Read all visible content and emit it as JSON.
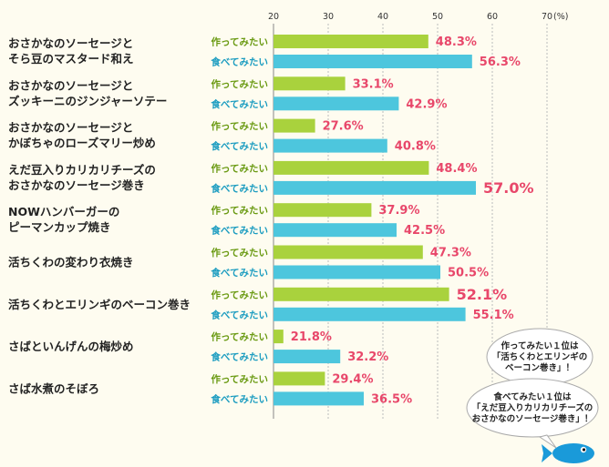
{
  "chart_data": {
    "type": "bar",
    "orientation": "horizontal",
    "xlim": [
      20,
      70
    ],
    "x_ticks": [
      "20",
      "30",
      "40",
      "50",
      "60",
      "70"
    ],
    "unit_label": "(%)",
    "grid": true,
    "categories": [
      [
        "おさかなのソーセージと",
        "そら豆のマスタード和え"
      ],
      [
        "おさかなのソーセージと",
        "ズッキーニのジンジャーソテー"
      ],
      [
        "おさかなのソーセージと",
        "かぼちゃのローズマリー炒め"
      ],
      [
        "えだ豆入りカリカリチーズの",
        "おさかなのソーセージ巻き"
      ],
      [
        "NOWハンバーガーの",
        "ピーマンカップ焼き"
      ],
      [
        "活ちくわの変わり衣焼き"
      ],
      [
        "活ちくわとエリンギのベーコン巻き"
      ],
      [
        "さばといんげんの梅炒め"
      ],
      [
        "さば水煮のそぼろ"
      ]
    ],
    "series": [
      {
        "name": "作ってみたい",
        "color": "#a9d23d",
        "label_color": "#6a9a12",
        "values": [
          48.3,
          33.1,
          27.6,
          48.4,
          37.9,
          47.3,
          52.1,
          21.8,
          29.4
        ],
        "value_labels": [
          "48.3%",
          "33.1%",
          "27.6%",
          "48.4%",
          "37.9%",
          "47.3%",
          "52.1%",
          "21.8%",
          "29.4%"
        ]
      },
      {
        "name": "食べてみたい",
        "color": "#4dc6dd",
        "label_color": "#1b9cc0",
        "values": [
          56.3,
          42.9,
          40.8,
          57.0,
          42.5,
          50.5,
          55.1,
          32.2,
          36.5
        ],
        "value_labels": [
          "56.3%",
          "42.9%",
          "40.8%",
          "57.0%",
          "42.5%",
          "50.5%",
          "55.1%",
          "32.2%",
          "36.5%"
        ]
      }
    ],
    "highlight": [
      {
        "series": 1,
        "index": 3
      },
      {
        "series": 0,
        "index": 6
      }
    ],
    "annotations": [
      [
        "作ってみたい１位は",
        "「活ちくわとエリンギの",
        "ベーコン巻き」！"
      ],
      [
        "食べてみたい１位は",
        "「えだ豆入りカリカリチーズの",
        "おさかなのソーセージ巻き」！"
      ]
    ],
    "colors": {
      "background": "#fefcf0",
      "value_text": "#e8476a",
      "fish": "#1a9ad9"
    }
  }
}
